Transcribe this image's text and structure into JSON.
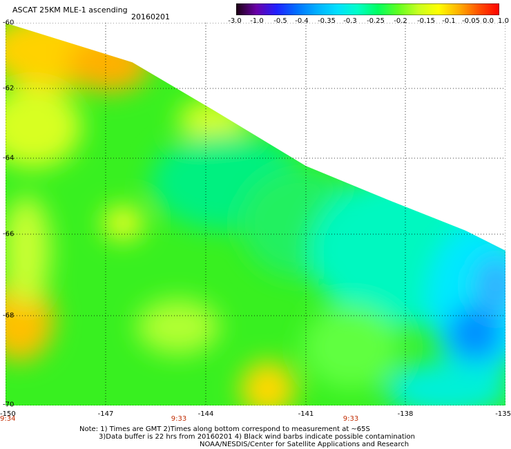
{
  "header": {
    "title": "ASCAT 25KM MLE-1 ascending",
    "date": "20160201"
  },
  "colorbar": {
    "labels": [
      "-3.0",
      "-1.0",
      "-0.5",
      "-0.4",
      "-0.35",
      "-0.3",
      "-0.25",
      "-0.2",
      "-0.15",
      "-0.1",
      "-0.05",
      "0.0",
      "1.0"
    ],
    "colors": [
      "#1a0010",
      "#6a00a8",
      "#2020ff",
      "#0070ff",
      "#00b0ff",
      "#00e0ff",
      "#00ffc8",
      "#00ff60",
      "#60ff20",
      "#c8ff20",
      "#ffff00",
      "#ffb000",
      "#ff5000",
      "#ff0000"
    ]
  },
  "map": {
    "lat_labels": [
      "-60",
      "-62",
      "-64",
      "-66",
      "-68",
      "-70"
    ],
    "lon_labels": [
      "-150",
      "-147",
      "-144",
      "-141",
      "-138",
      "-135"
    ],
    "time_labels": [
      "9:34",
      "9:33",
      "9:33"
    ],
    "lat_range": [
      -70,
      -60
    ],
    "lon_range": [
      -150,
      -135
    ],
    "swath_edge": [
      [
        -150,
        -60
      ],
      [
        -146.2,
        -61.2
      ],
      [
        -143.8,
        -62.6
      ],
      [
        -141,
        -64.2
      ],
      [
        -138.5,
        -65.1
      ],
      [
        -136.2,
        -65.9
      ],
      [
        -135,
        -66.4
      ]
    ]
  },
  "notes": {
    "line1": "Note: 1) Times are GMT 2)Times along bottom correspond to measurement at ~65S",
    "line2": "3)Data buffer is 22 hrs from 20160201 4) Black wind barbs indicate possible contamination",
    "line3": "NOAA/NESDIS/Center for Satellite Applications and Research"
  }
}
